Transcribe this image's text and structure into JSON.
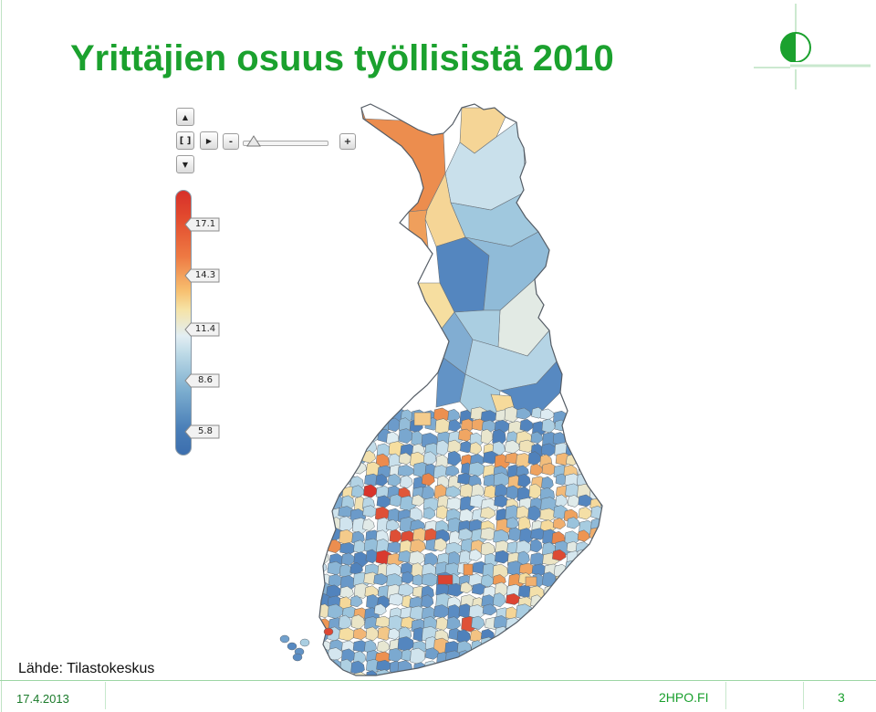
{
  "slide": {
    "title": "Yrittäjien osuus työllisistä 2010",
    "source": "Lähde: Tilastokeskus",
    "footer": {
      "date": "17.4.2013",
      "site": "2HPO.FI",
      "page": "3"
    }
  },
  "map_controls": {
    "up": "▲",
    "down": "▼",
    "right": "▶",
    "fit": "[ ]",
    "zoom_out": "-",
    "zoom_in": "+",
    "zoom_level": 0.05
  },
  "legend": {
    "ticks": [
      "17.1",
      "14.3",
      "11.4",
      "8.6",
      "5.8"
    ],
    "tick_values": [
      17.1,
      14.3,
      11.4,
      8.6,
      5.8
    ],
    "value_range": [
      4.5,
      19.0
    ]
  },
  "colors": {
    "title": "#1ba12e",
    "high": "#d7302a",
    "mid_high": "#ee7a43",
    "mid": "#f6e3a6",
    "low_mid": "#bcd9e6",
    "low": "#3c6eae",
    "border": "#555d66"
  },
  "icons": {
    "logo": "hpo-logo-icon",
    "pan_up": "arrow-up-icon",
    "pan_down": "arrow-down-icon",
    "pan_right": "arrow-right-icon",
    "slider_thumb": "slider-thumb-icon"
  }
}
